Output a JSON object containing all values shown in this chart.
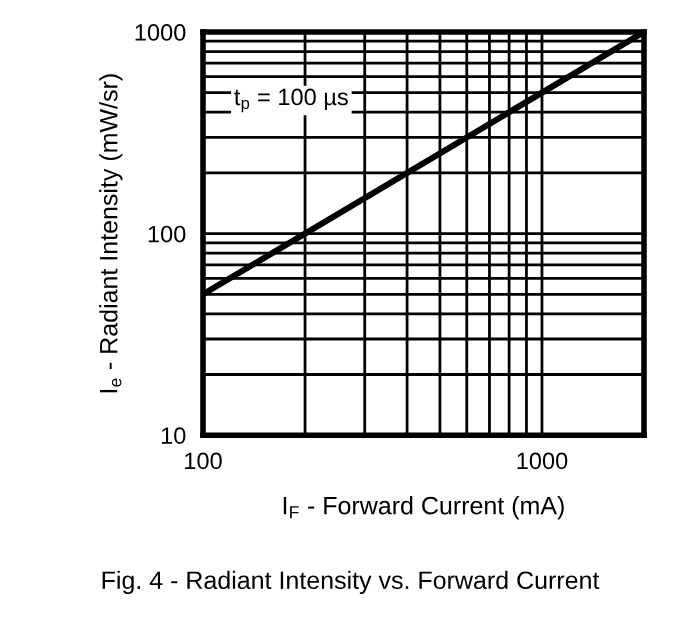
{
  "chart_data": {
    "type": "line",
    "x": [
      100,
      2000
    ],
    "series": [
      {
        "color": "#000000",
        "values": [
          50,
          1000
        ]
      }
    ],
    "xlabel": "I$_{F}$ - Forward Current (mA)",
    "ylabel": "I$_{e}$ - Radiant Intensity (mW/sr)",
    "annotations": [
      "t$_{p}$ = 100 µs",
      "Fig. 4 - Radiant Intensity vs. Forward Current"
    ],
    "log": "xy",
    "xlim": [
      100,
      2000
    ],
    "ylim": [
      10,
      1000
    ],
    "xticks": [
      100,
      1000
    ],
    "yticks": [
      10,
      100,
      1000
    ],
    "grid": true,
    "marker": "none",
    "line_style": "solid"
  }
}
